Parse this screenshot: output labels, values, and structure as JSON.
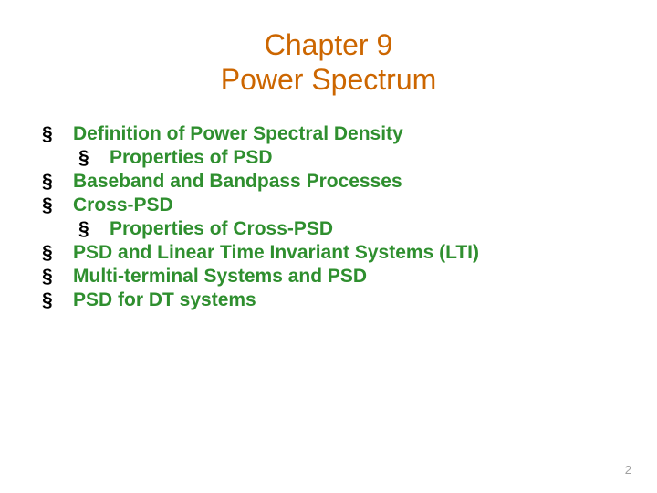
{
  "colors": {
    "title": "#cc6600",
    "content": "#2f8f2f",
    "pageNum": "#a0a0a0",
    "bullet": "#000000"
  },
  "fonts": {
    "titleSize": 32,
    "contentSize": 21,
    "pageNumSize": 13
  },
  "title": {
    "line1": "Chapter 9",
    "line2": "Power Spectrum"
  },
  "bulletGlyph": "§",
  "items": [
    {
      "label": "Definition of Power Spectral Density",
      "sub": [
        "Properties of PSD"
      ]
    },
    {
      "label": "Baseband and Bandpass Processes",
      "sub": []
    },
    {
      "label": "Cross-PSD",
      "sub": [
        "Properties of Cross-PSD"
      ]
    },
    {
      "label": "PSD and Linear Time Invariant Systems (LTI)",
      "sub": []
    },
    {
      "label": "Multi-terminal Systems and PSD",
      "sub": []
    },
    {
      "label": "PSD for DT systems",
      "sub": []
    }
  ],
  "pageNumber": "2"
}
